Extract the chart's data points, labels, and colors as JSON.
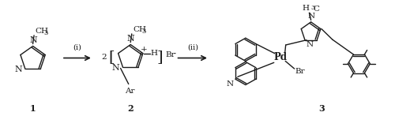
{
  "bg_color": "#ffffff",
  "fig_width": 5.0,
  "fig_height": 1.47,
  "dpi": 100,
  "compound1_label": "1",
  "compound2_label": "2",
  "compound3_label": "3",
  "arrow1_label": "(i)",
  "arrow2_label": "(ii)",
  "label_fontsize": 8,
  "struct_fontsize": 7.5,
  "line_color": "#1a1a1a",
  "line_width": 1.0,
  "xlim": [
    0,
    10
  ],
  "ylim": [
    0,
    3
  ]
}
